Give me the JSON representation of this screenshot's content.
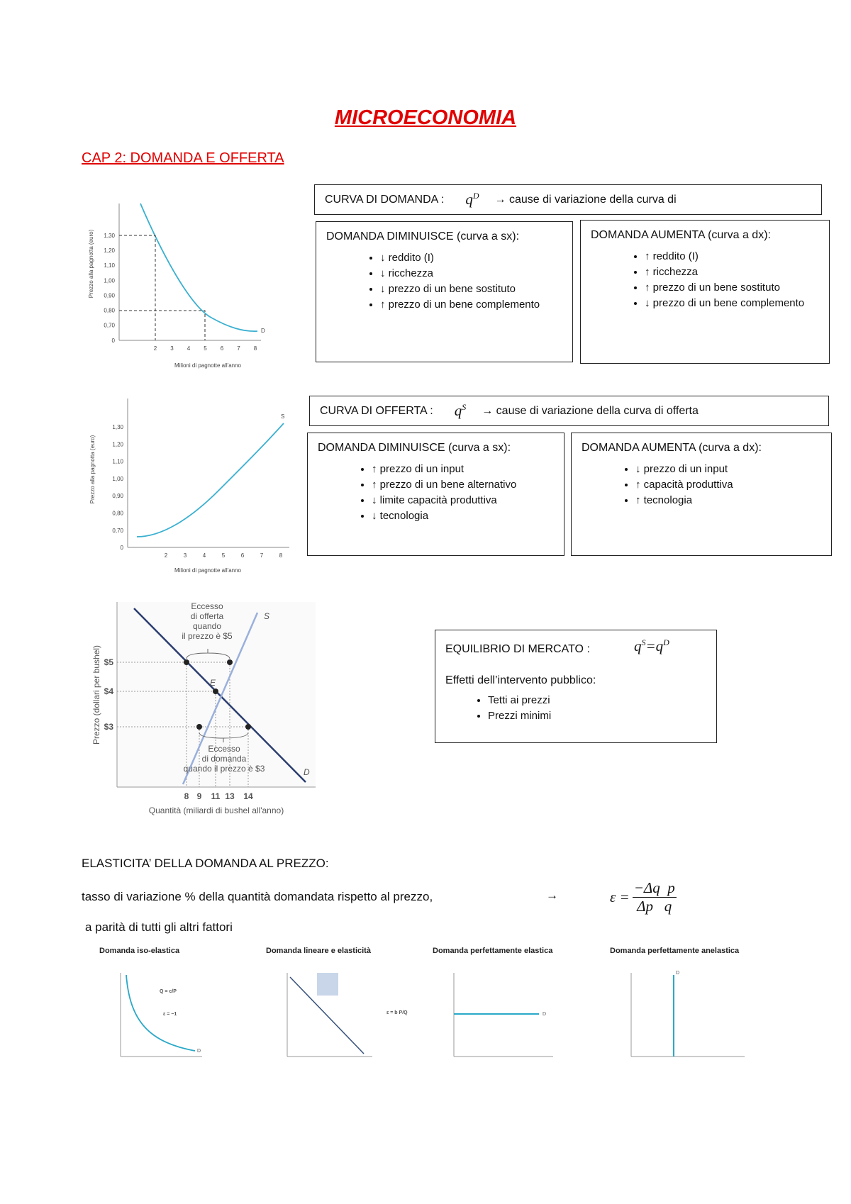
{
  "title": "MICROECONOMIA",
  "chapter": "CAP 2: DOMANDA E OFFERTA",
  "demand_figure": {
    "y_label": "Prezzo alla pagnotta (euro)",
    "x_label": "Milioni di pagnotte all'anno",
    "curve_label": "D",
    "yticks": [
      "1,30",
      "1,20",
      "1,10",
      "1,00",
      "0,90",
      "0,80",
      "0,70",
      "0"
    ],
    "xticks": [
      "2",
      "3",
      "4",
      "5",
      "6",
      "7",
      "8"
    ]
  },
  "demand_box": {
    "heading": "CURVA DI DOMANDA :",
    "symbol": "q",
    "superscript": "D",
    "arrow_text": "→ cause di variazione della curva di",
    "decrease": {
      "heading": "DOMANDA DIMINUISCE (curva a sx):",
      "items": [
        "↓ reddito (I)",
        "↓ ricchezza",
        "↓ prezzo di un bene sostituto",
        "↑ prezzo di un bene complemento"
      ]
    },
    "increase": {
      "heading": "DOMANDA AUMENTA (curva a dx):",
      "items": [
        "↑ reddito (I)",
        "↑ ricchezza",
        "↑ prezzo di un bene sostituto",
        "↓ prezzo di un bene complemento"
      ]
    }
  },
  "supply_figure": {
    "y_label": "Prezzo alla pagnotta (euro)",
    "x_label": "Milioni di pagnotte all'anno",
    "curve_label": "S",
    "yticks": [
      "1,30",
      "1,20",
      "1,10",
      "1,00",
      "0,90",
      "0,80",
      "0,70",
      "0"
    ],
    "xticks": [
      "2",
      "3",
      "4",
      "5",
      "6",
      "7",
      "8"
    ]
  },
  "supply_box": {
    "heading": "CURVA DI OFFERTA :",
    "symbol": "q",
    "superscript": "S",
    "arrow_text": "→ cause di variazione della curva di offerta",
    "decrease": {
      "heading": "DOMANDA DIMINUISCE (curva a sx):",
      "items": [
        "↑ prezzo di un input",
        "↑ prezzo di un bene alternativo",
        "↓ limite capacità produttiva",
        "↓ tecnologia"
      ]
    },
    "increase": {
      "heading": "DOMANDA AUMENTA (curva a dx):",
      "items": [
        "↓ prezzo di un input",
        "↑ capacità produttiva",
        "↑ tecnologia"
      ]
    }
  },
  "equilibrium_figure": {
    "y_label": "Prezzo (dollari per bushel)",
    "x_label": "Quantità (miliardi di bushel all'anno)",
    "yticks": [
      "$5",
      "$4",
      "$3"
    ],
    "xticks": [
      "8",
      "9",
      "11",
      "13",
      "14"
    ],
    "supply_label": "S",
    "demand_label": "D",
    "equilibrium_label": "E",
    "excess_supply": [
      "Eccesso",
      "di offerta",
      "quando",
      "il prezzo è $5"
    ],
    "excess_demand": [
      "Eccesso",
      "di domanda",
      "quando il prezzo è $3"
    ]
  },
  "equilibrium_box": {
    "heading": "EQUILIBRIO DI MERCATO :",
    "formula": [
      "q",
      "S",
      "=",
      "q",
      "D"
    ],
    "subheading": "Effetti dell’intervento pubblico:",
    "items": [
      "Tetti ai prezzi",
      "Prezzi minimi"
    ]
  },
  "elasticity": {
    "heading": "ELASTICITA’ DELLA DOMANDA AL PREZZO:",
    "definition": "tasso di variazione % della quantità domandata rispetto al prezzo,",
    "arrow": "→",
    "formula": {
      "lhs": "ε =",
      "numerator": "−Δq  p",
      "denominator": "Δp   q"
    },
    "note": "a parità di tutti gli altri fattori"
  },
  "small_figures": [
    {
      "title": "Domanda iso-elastica",
      "formula": "Q = c/P",
      "elasticity": "ε = −1",
      "curve_label": "D"
    },
    {
      "title": "Domanda lineare e elasticità",
      "formula": "ε = b P/Q"
    },
    {
      "title": "Domanda perfettamente elastica",
      "curve_label": "D"
    },
    {
      "title": "Domanda perfettamente anelastica",
      "curve_label": "D"
    }
  ]
}
